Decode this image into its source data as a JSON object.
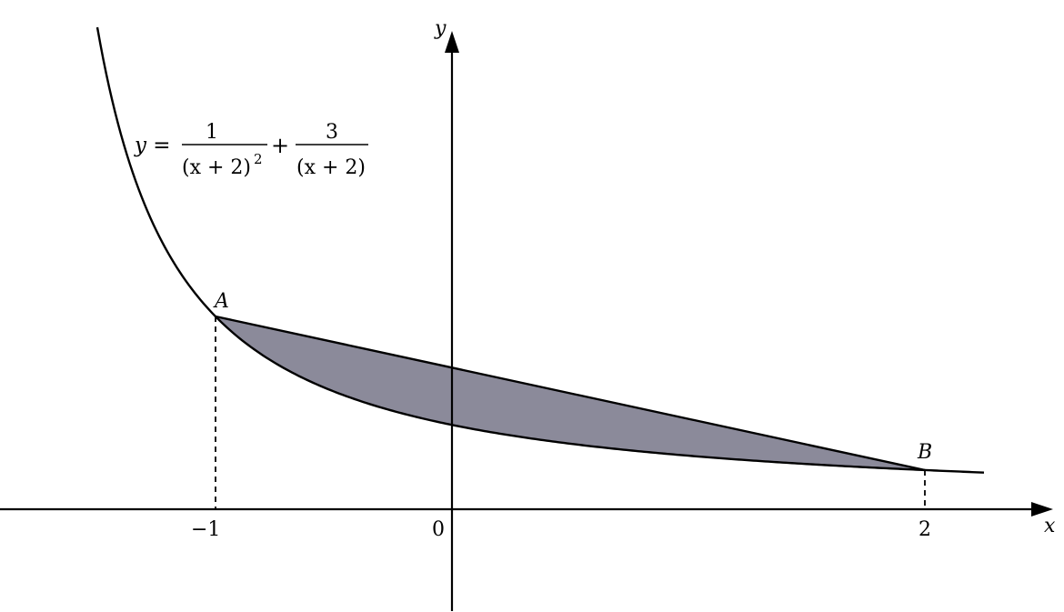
{
  "figure": {
    "axes": {
      "x_label": "x",
      "y_label": "y",
      "origin_label": "0"
    },
    "ticks": [
      {
        "value": -1,
        "label": "−1"
      },
      {
        "value": 2,
        "label": "2"
      }
    ],
    "points": {
      "A": {
        "label": "A",
        "x": -1,
        "y": 4
      },
      "B": {
        "label": "B",
        "x": 2,
        "y": 0.8125
      }
    },
    "equation": {
      "lhs": "y =",
      "frac1_num": "1",
      "frac1_den": "(x + 2)",
      "frac1_den_exp": "2",
      "plus": "+",
      "frac2_num": "3",
      "frac2_den": "(x + 2)"
    },
    "colors": {
      "shaded_region": "#8b8a9a",
      "curve": "#000000",
      "axes": "#000000"
    }
  },
  "chart_data": {
    "type": "line",
    "function": "y = 1/(x+2)^2 + 3/(x+2)",
    "curve_domain": [
      -1.5,
      2.25
    ],
    "chord": {
      "from": [
        -1,
        4
      ],
      "to": [
        2,
        0.8125
      ]
    },
    "shaded_region": "between chord AB and the curve for -1 ≤ x ≤ 2",
    "dashed_verticals": [
      -1,
      2
    ],
    "xlim": [
      -1.95,
      2.6
    ],
    "ylim": [
      -0.5,
      9.6
    ],
    "grid": false
  }
}
